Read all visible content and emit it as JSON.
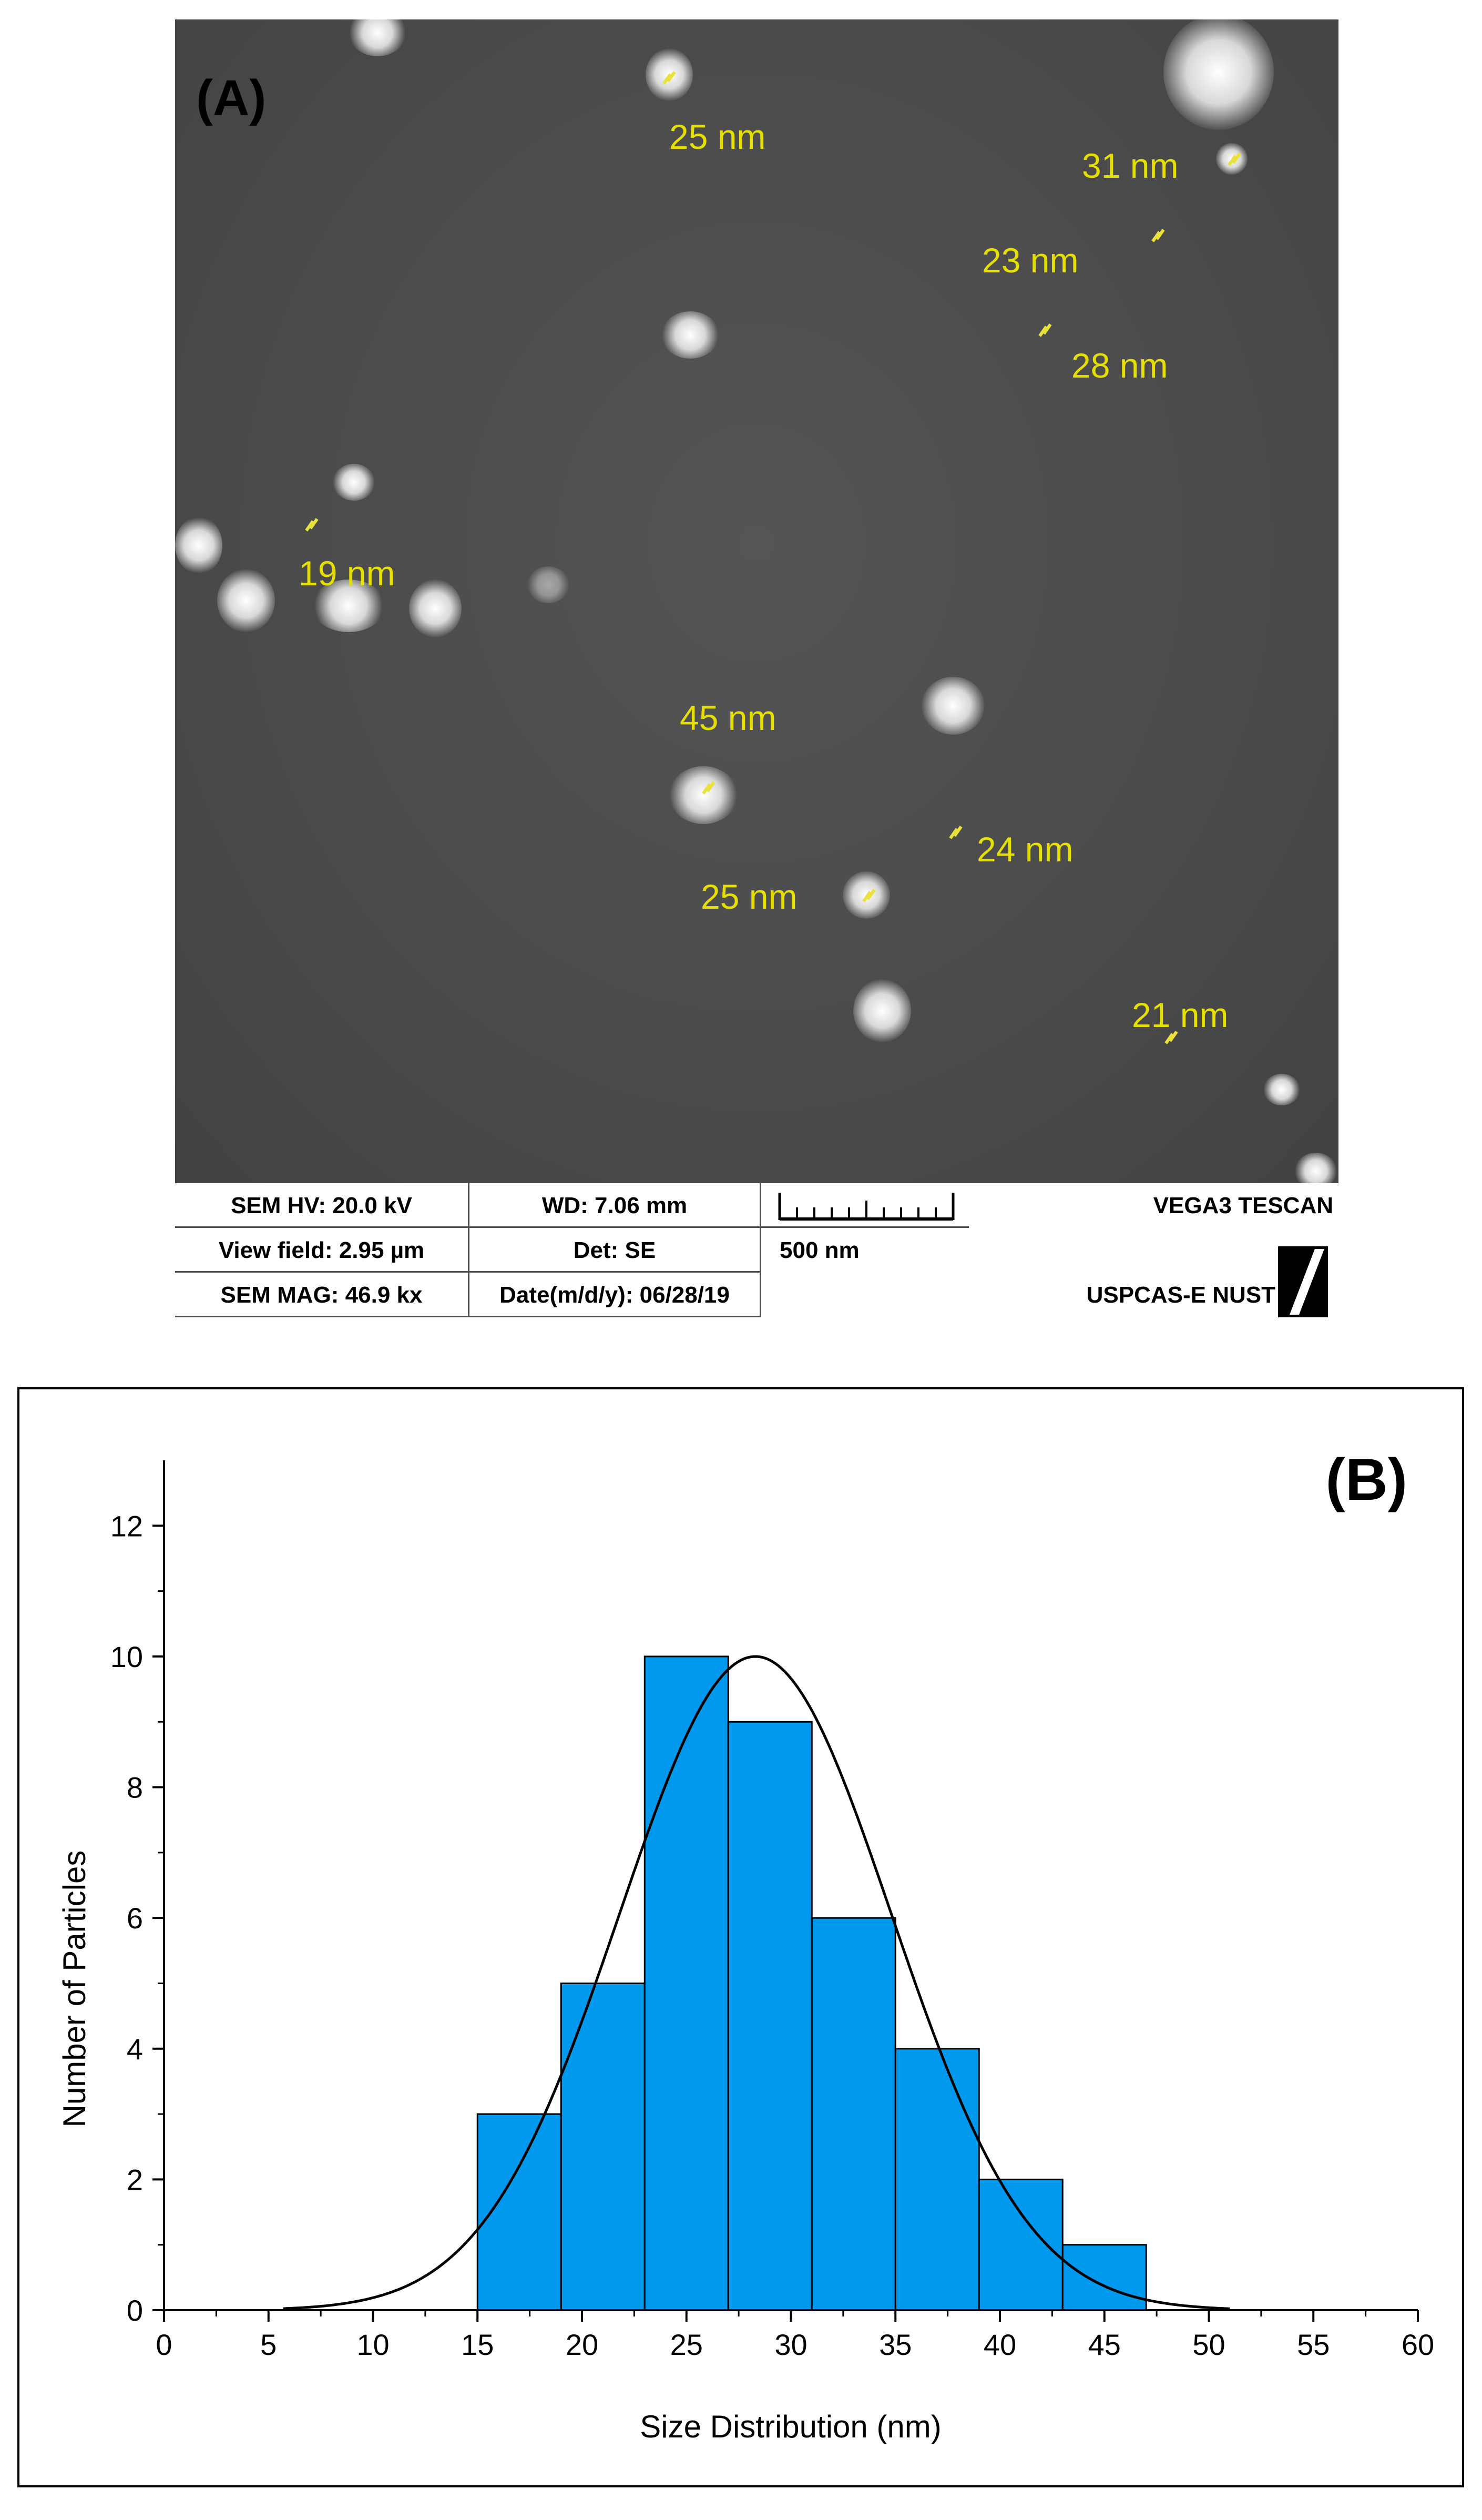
{
  "panel_a": {
    "label": "(A)",
    "size_annotations": [
      "25 nm",
      "31 nm",
      "23 nm",
      "28 nm",
      "19 nm",
      "45 nm",
      "24 nm",
      "25 nm",
      "21 nm"
    ],
    "info_bar": {
      "sem_hv": "SEM HV: 20.0 kV",
      "wd": "WD: 7.06 mm",
      "view_field": "View field: 2.95 µm",
      "det": "Det: SE",
      "sem_mag": "SEM MAG: 46.9 kx",
      "date": "Date(m/d/y): 06/28/19",
      "scale": "500 nm",
      "vendor": "VEGA3 TESCAN",
      "institution": "USPCAS-E NUST"
    }
  },
  "chart_data": {
    "type": "bar",
    "panel_label": "(B)",
    "xlabel": "Size Distribution (nm)",
    "ylabel": "Number of Particles",
    "xlim": [
      0,
      60
    ],
    "ylim": [
      0,
      13
    ],
    "xticks": [
      0,
      5,
      10,
      15,
      20,
      25,
      30,
      35,
      40,
      45,
      50,
      55,
      60
    ],
    "yticks": [
      0,
      2,
      4,
      6,
      8,
      10,
      12
    ],
    "bin_edges": [
      15,
      19,
      23,
      27,
      31,
      35,
      39,
      43,
      47
    ],
    "values": [
      3,
      5,
      10,
      9,
      6,
      4,
      2,
      1
    ],
    "bar_color": "#0099ee",
    "fit_curve": {
      "type": "gaussian",
      "mean": 28.3,
      "peak": 10,
      "sigma": 6.5,
      "x_range": [
        5.7,
        51
      ]
    },
    "grid": false
  }
}
